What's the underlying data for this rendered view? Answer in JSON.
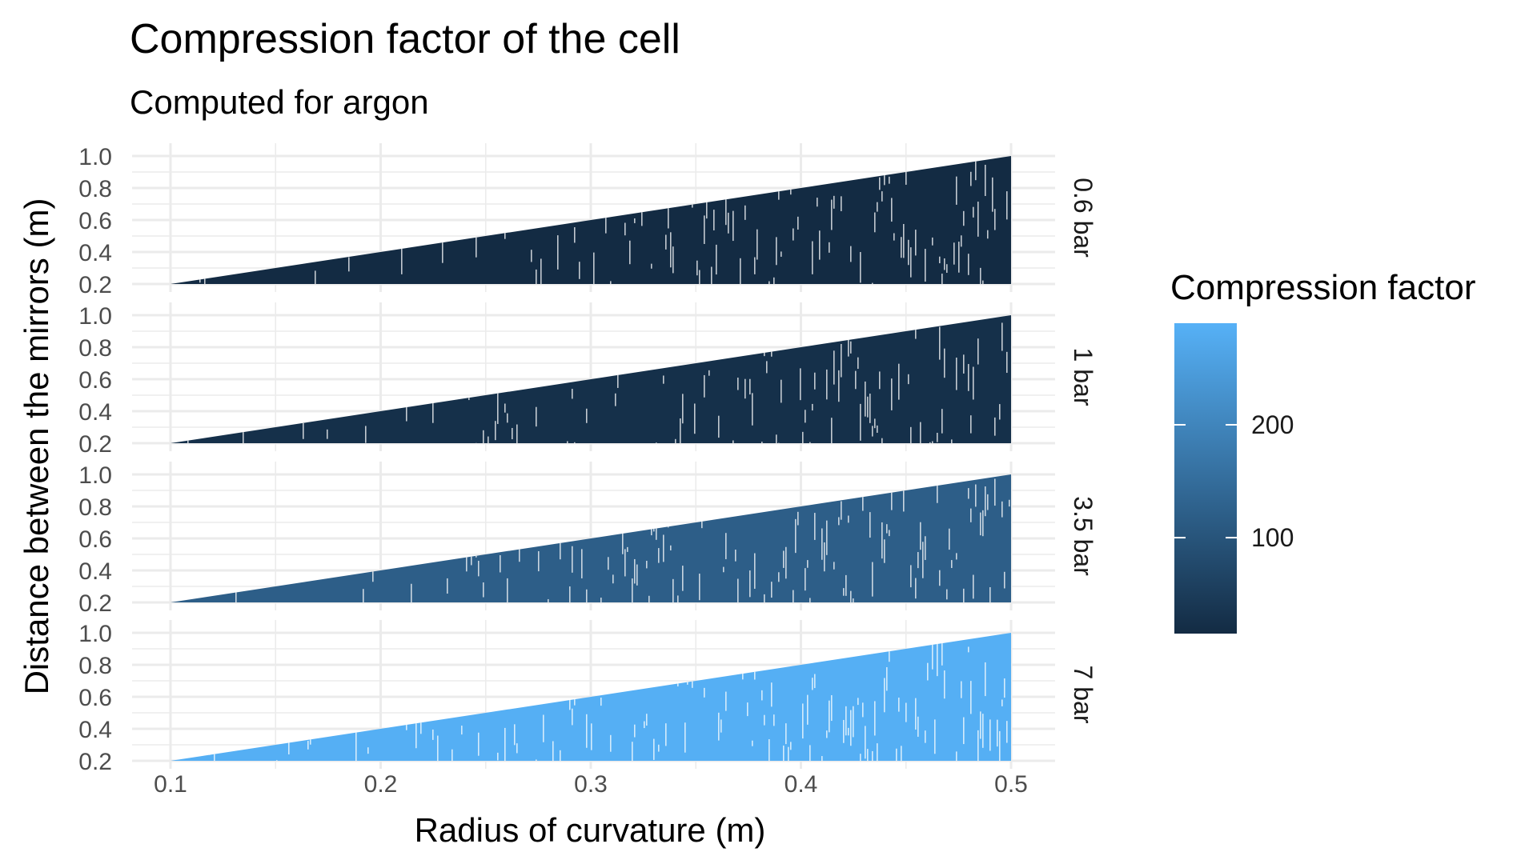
{
  "chart_data": {
    "type": "heatmap",
    "title": "Compression factor of the cell",
    "subtitle": "Computed for argon",
    "xlabel": "Radius of curvature (m)",
    "ylabel": "Distance between the mirrors (m)",
    "xlim": [
      0.1,
      0.5
    ],
    "ylim": [
      0.2,
      1.0
    ],
    "x_ticks": [
      "0.1",
      "0.2",
      "0.3",
      "0.4",
      "0.5"
    ],
    "y_ticks": [
      "0.2",
      "0.4",
      "0.6",
      "0.8",
      "1.0"
    ],
    "facet_labels": [
      "0.6 bar",
      "1 bar",
      "3.5 bar",
      "7 bar"
    ],
    "facet_fill_values": [
      15,
      25,
      120,
      285
    ],
    "region_upper_bound": {
      "x": [
        0.1,
        0.5
      ],
      "y": [
        0.2,
        1.0
      ]
    },
    "fill_scale": {
      "name": "Compression factor",
      "min": 15,
      "max": 290,
      "low_color": "#132B43",
      "high_color": "#56B1F7",
      "ticks": [
        "100",
        "200"
      ]
    },
    "grid": true,
    "legend_position": "right"
  }
}
